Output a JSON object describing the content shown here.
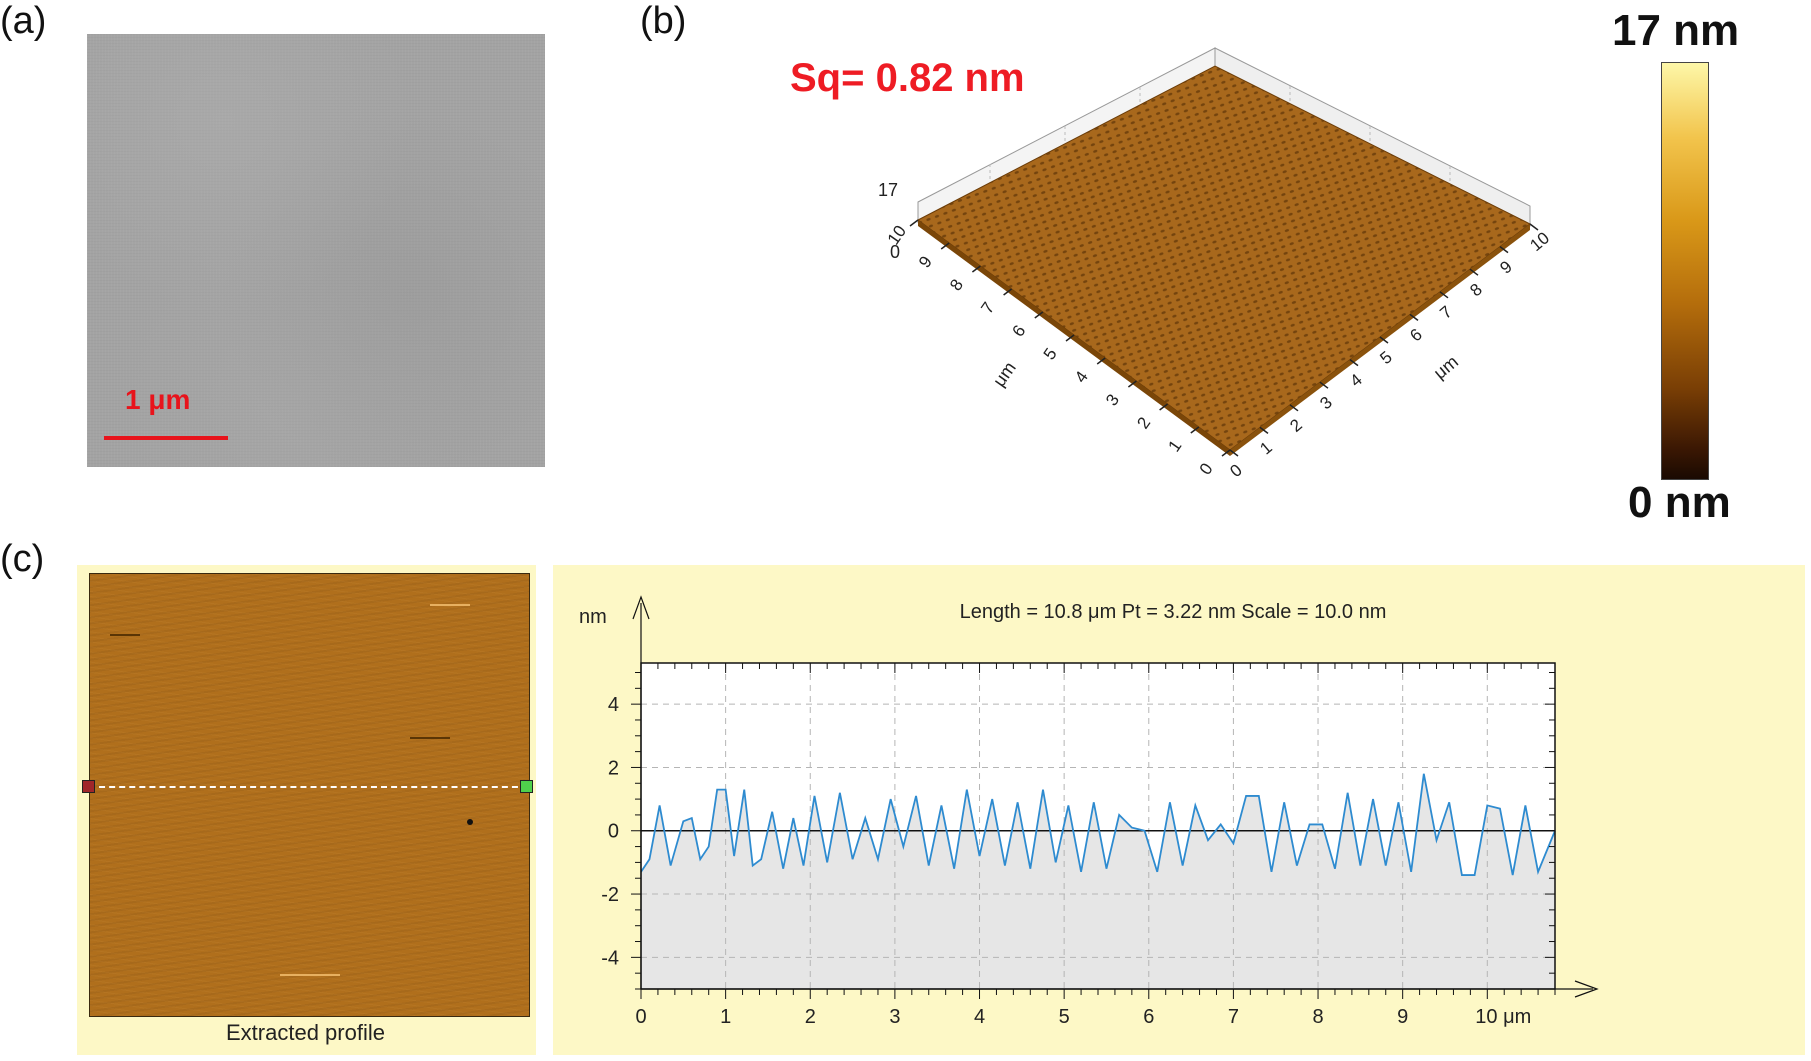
{
  "panels": {
    "a": {
      "label": "(a)",
      "scale_bar": "1 μm"
    },
    "b": {
      "label": "(b)",
      "sq_text": "Sq= 0.82 nm",
      "z_axis_ticks": [
        "17",
        "0"
      ],
      "x_axis_ticks": [
        "0",
        "1",
        "2",
        "3",
        "4",
        "5",
        "6",
        "7",
        "8",
        "9",
        "10"
      ],
      "y_axis_ticks": [
        "0",
        "1",
        "2",
        "3",
        "4",
        "5",
        "6",
        "7",
        "8",
        "9",
        "10"
      ],
      "axis_unit": "μm",
      "colorbar": {
        "max_label": "17 nm",
        "min_label": "0 nm"
      }
    },
    "c": {
      "label": "(c)",
      "map_caption": "Extracted profile"
    }
  },
  "colors": {
    "accent_red": "#ee1c24",
    "profile_line": "#2e8bd0",
    "panel_bg": "#fdf8c6",
    "afm_map": "#b06f1c"
  },
  "chart_data": {
    "type": "line",
    "title": "Length = 10.8 μm  Pt = 3.22 nm  Scale = 10.0 nm",
    "xlabel": "μm",
    "ylabel": "nm",
    "xlim": [
      0,
      10.8
    ],
    "ylim": [
      -5,
      5.3
    ],
    "x_ticks": [
      0,
      1,
      2,
      3,
      4,
      5,
      6,
      7,
      8,
      9,
      10
    ],
    "x_tick_labels": [
      "0",
      "1",
      "2",
      "3",
      "4",
      "5",
      "6",
      "7",
      "8",
      "9",
      "10 μm"
    ],
    "y_ticks": [
      4,
      2,
      0,
      -2,
      -4
    ],
    "y_tick_labels": [
      "4",
      "2",
      "0",
      "-2",
      "-4"
    ],
    "grid": true,
    "series": [
      {
        "values_x": [
          0,
          0.1,
          0.22,
          0.35,
          0.5,
          0.6,
          0.7,
          0.8,
          0.9,
          1.0,
          1.1,
          1.22,
          1.32,
          1.42,
          1.55,
          1.68,
          1.8,
          1.92,
          2.05,
          2.2,
          2.35,
          2.5,
          2.65,
          2.8,
          2.95,
          3.1,
          3.25,
          3.4,
          3.55,
          3.7,
          3.85,
          4.0,
          4.15,
          4.3,
          4.45,
          4.6,
          4.75,
          4.9,
          5.05,
          5.2,
          5.35,
          5.5,
          5.65,
          5.8,
          5.95,
          6.1,
          6.25,
          6.4,
          6.55,
          6.7,
          6.85,
          7.0,
          7.15,
          7.3,
          7.45,
          7.6,
          7.75,
          7.9,
          8.05,
          8.2,
          8.35,
          8.5,
          8.65,
          8.8,
          8.95,
          9.1,
          9.25,
          9.4,
          9.55,
          9.7,
          9.85,
          10.0,
          10.15,
          10.3,
          10.45,
          10.6,
          10.8
        ],
        "values_y": [
          -1.3,
          -0.9,
          0.8,
          -1.1,
          0.3,
          0.4,
          -0.9,
          -0.5,
          1.3,
          1.3,
          -0.8,
          1.3,
          -1.1,
          -0.9,
          0.6,
          -1.2,
          0.4,
          -1.1,
          1.1,
          -1.0,
          1.2,
          -0.9,
          0.4,
          -0.9,
          1.0,
          -0.5,
          1.1,
          -1.1,
          0.8,
          -1.2,
          1.3,
          -0.8,
          1.0,
          -1.1,
          0.9,
          -1.2,
          1.3,
          -1.0,
          0.8,
          -1.3,
          0.9,
          -1.2,
          0.5,
          0.1,
          0.0,
          -1.3,
          0.9,
          -1.1,
          0.8,
          -0.3,
          0.2,
          -0.4,
          1.1,
          1.1,
          -1.3,
          0.9,
          -1.1,
          0.2,
          0.2,
          -1.2,
          1.2,
          -1.1,
          1.0,
          -1.1,
          0.9,
          -1.3,
          1.8,
          -0.3,
          0.9,
          -1.4,
          -1.4,
          0.8,
          0.7,
          -1.4,
          0.8,
          -1.3,
          0.0
        ]
      }
    ]
  }
}
